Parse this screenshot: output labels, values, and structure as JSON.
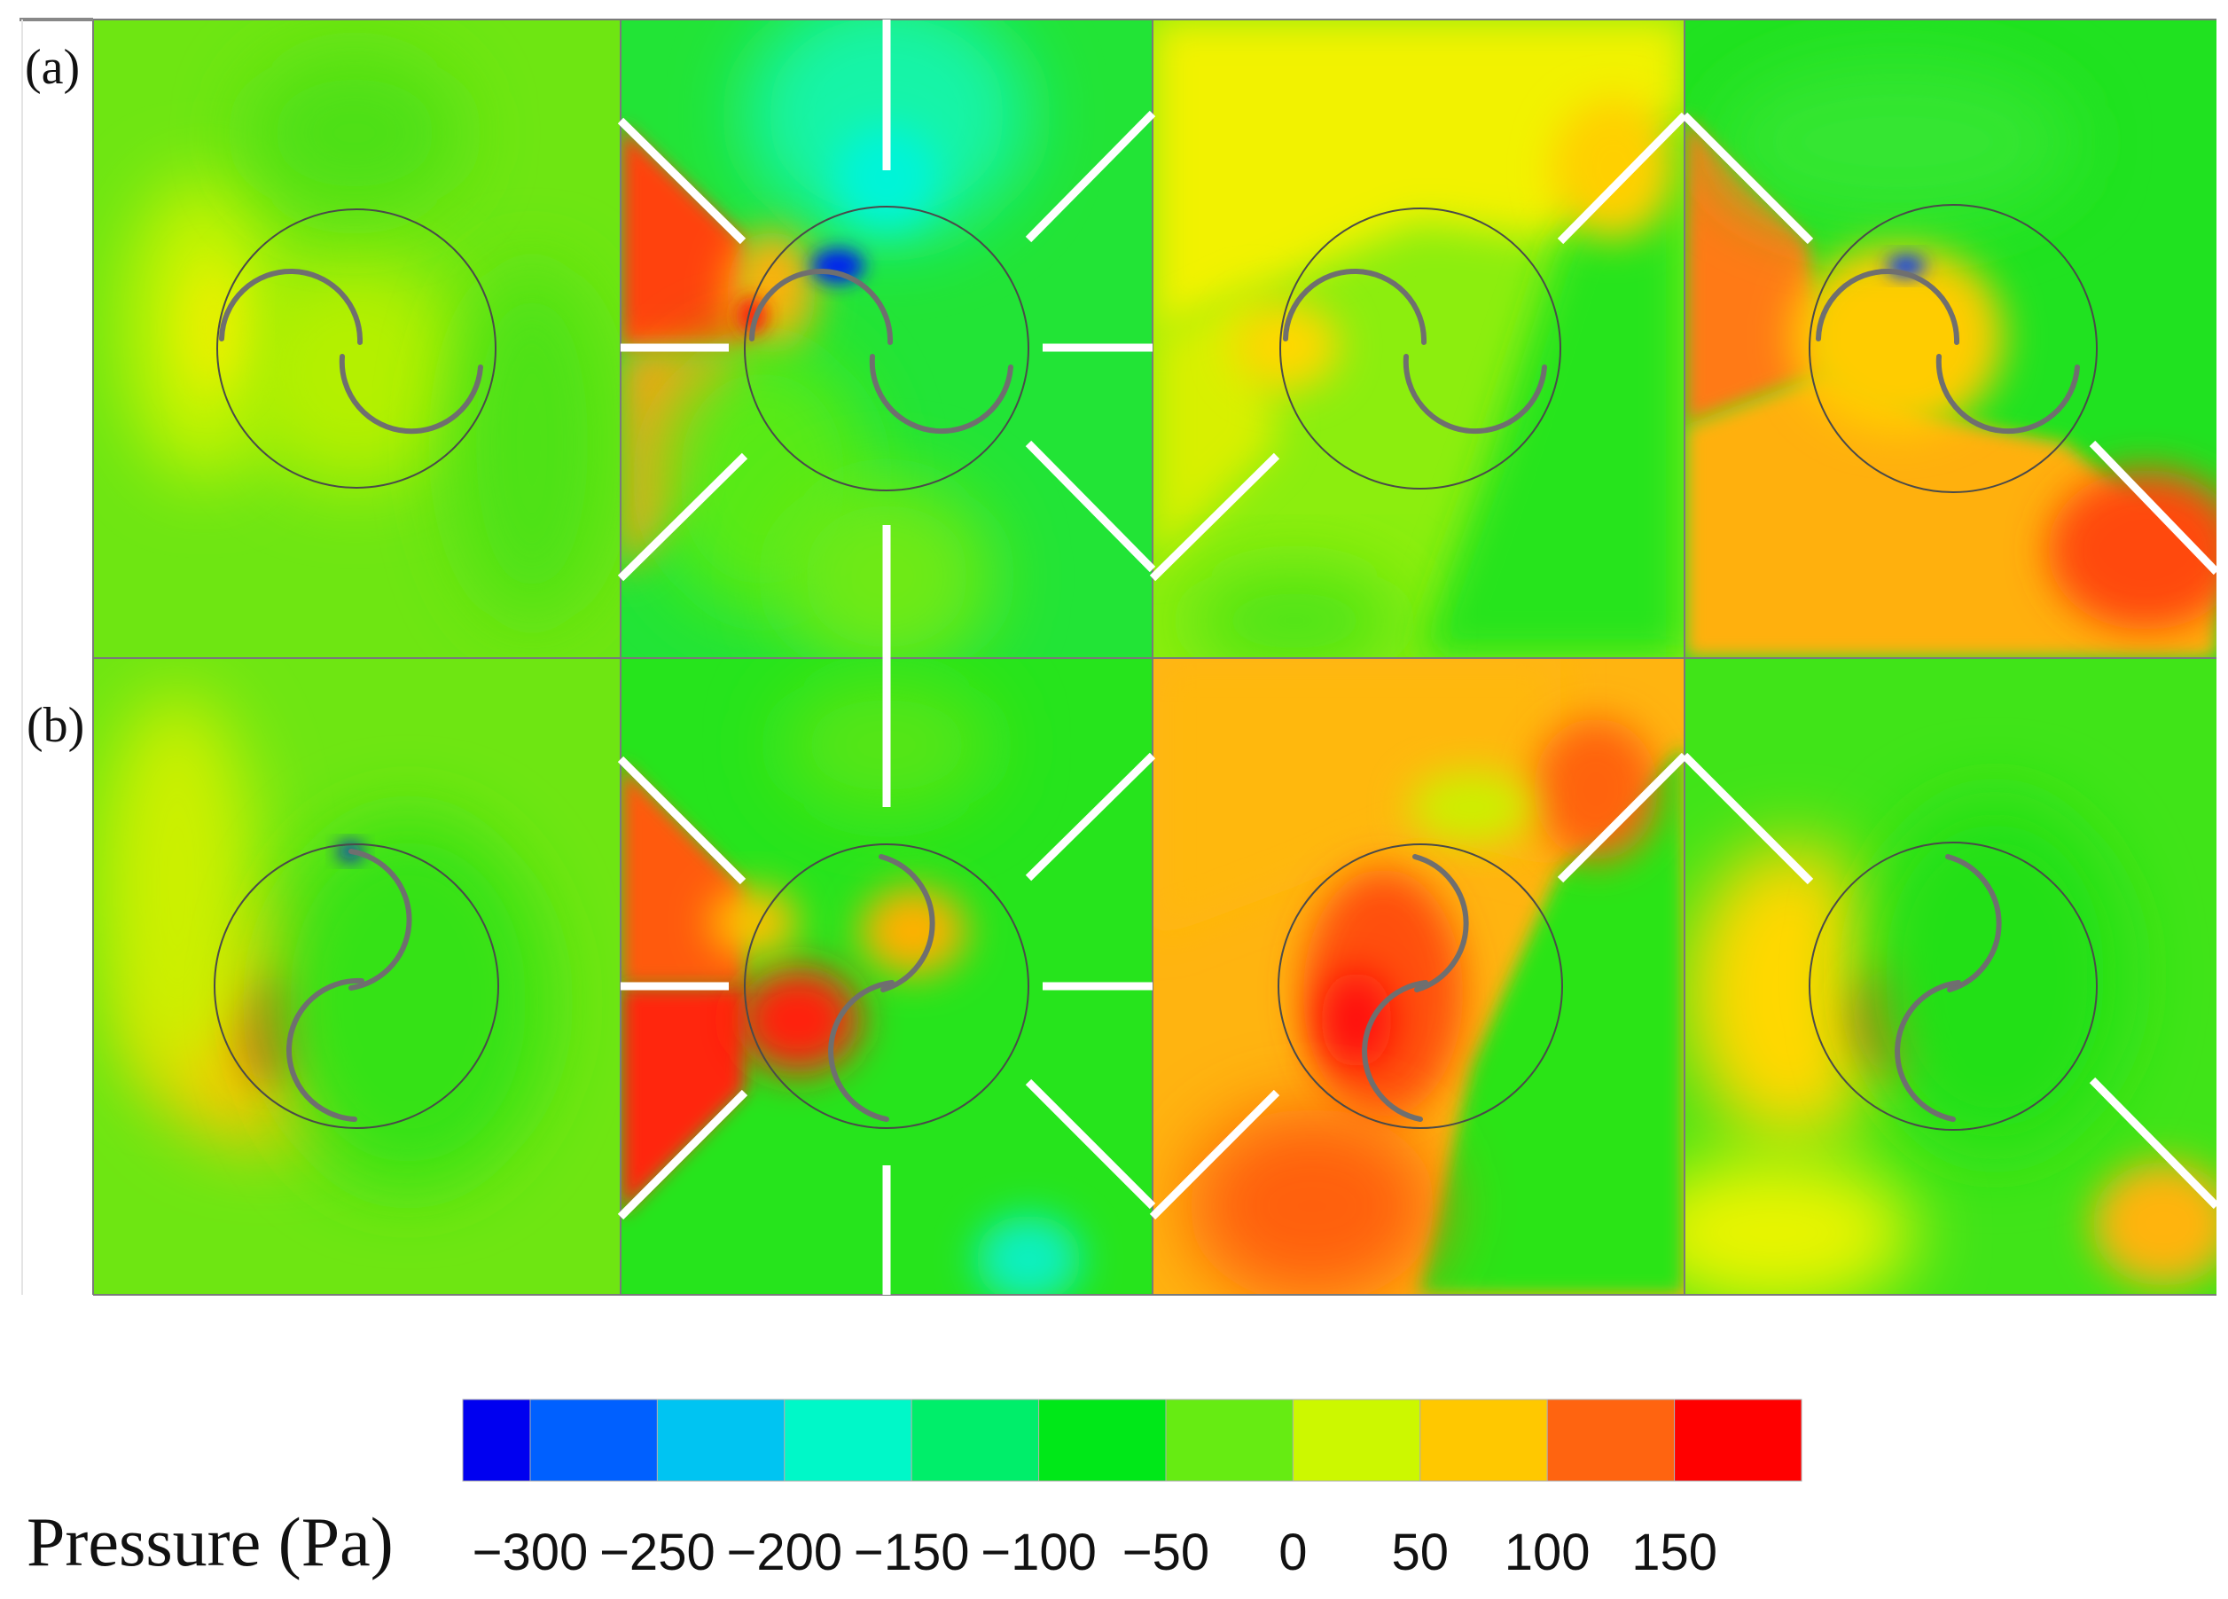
{
  "row_labels": {
    "a": "(a)",
    "b": "(b)"
  },
  "legend": {
    "title": "Pressure (Pa)",
    "ticks": [
      "−300",
      "−250",
      "−200",
      "−150",
      "−100",
      "−50",
      "0",
      "50",
      "100",
      "150"
    ],
    "colors": [
      "#0000f0",
      "#0060ff",
      "#00c4f2",
      "#00f8c8",
      "#00ee6a",
      "#00e818",
      "#66ec12",
      "#ccf800",
      "#ffc800",
      "#ff6410",
      "#ff0000"
    ]
  },
  "colors": {
    "panel_base_green": "#5ee60e",
    "blade": "#777777",
    "deflector": "#ffffff"
  },
  "panels": {
    "row_a": [
      "rotor without deflectors",
      "rotor with eight deflectors",
      "rotor with two deflectors",
      "rotor with three deflectors"
    ],
    "row_b": [
      "rotor without deflectors",
      "rotor with eight deflectors",
      "rotor with two deflectors",
      "rotor with three deflectors"
    ]
  }
}
